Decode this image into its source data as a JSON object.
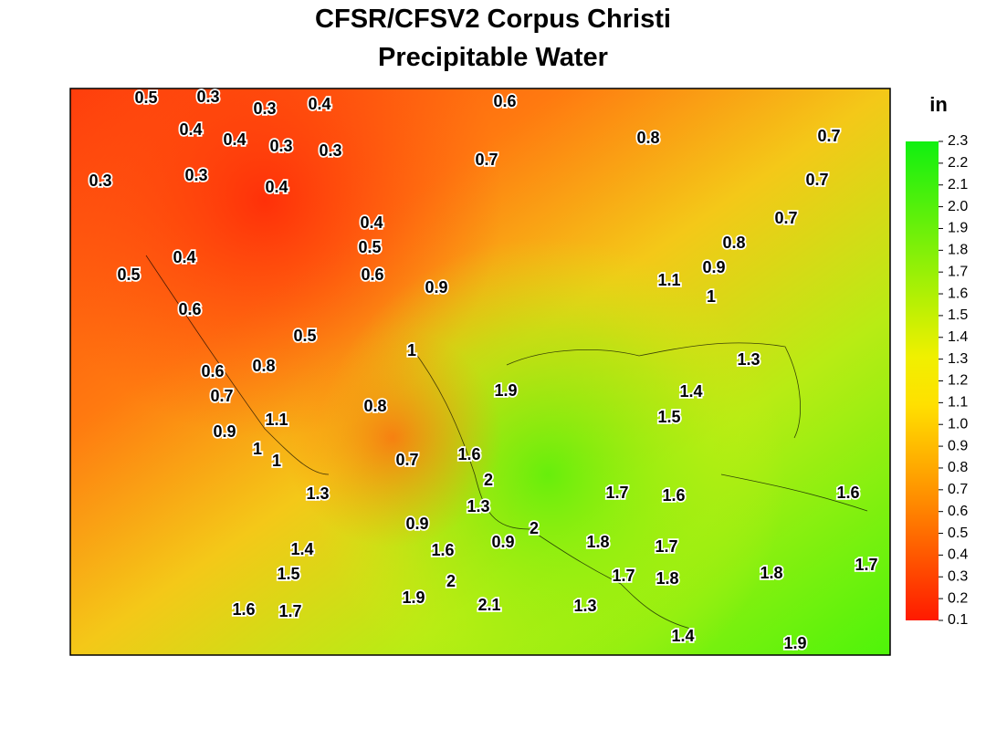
{
  "title": [
    "CFSR/CFSV2 Corpus Christi",
    "Precipitable Water"
  ],
  "colorbar": {
    "label": "in",
    "lim": [
      0.1,
      2.3
    ],
    "ticks": [
      0.1,
      0.2,
      0.3,
      0.4,
      0.5,
      0.6,
      0.7,
      0.8,
      0.9,
      {
        "value": 1,
        "label": "1.0"
      },
      1.1,
      1.2,
      1.3,
      1.4,
      1.5,
      1.6,
      1.7,
      1.8,
      1.9,
      {
        "value": 2,
        "label": "2.0"
      },
      2.1,
      2.2,
      2.3
    ]
  },
  "contour_labels": [
    0.5,
    0.3,
    0.3,
    0.4,
    0.6,
    0.4,
    0.4,
    0.3,
    0.3,
    0.7,
    0.8,
    0.7,
    0.3,
    0.3,
    0.4,
    0.7,
    0.4,
    0.7,
    0.5,
    0.8,
    0.4,
    0.5,
    0.6,
    0.9,
    1.1,
    0.9,
    1,
    0.6,
    0.5,
    1,
    1.3,
    0.6,
    0.8,
    0.7,
    1.9,
    1.4,
    0.8,
    1.5,
    1.1,
    0.9,
    1,
    1,
    1.6,
    0.7,
    2,
    1.3,
    1.7,
    1.6,
    1.6,
    1.3,
    0.9,
    2,
    0.9,
    1.8,
    1.7,
    1.6,
    1.4,
    1.5,
    2,
    1.7,
    1.8,
    1.8,
    1.7,
    1.9,
    2.1,
    1.3,
    1.6,
    1.7,
    1.4,
    1.9
  ]
}
